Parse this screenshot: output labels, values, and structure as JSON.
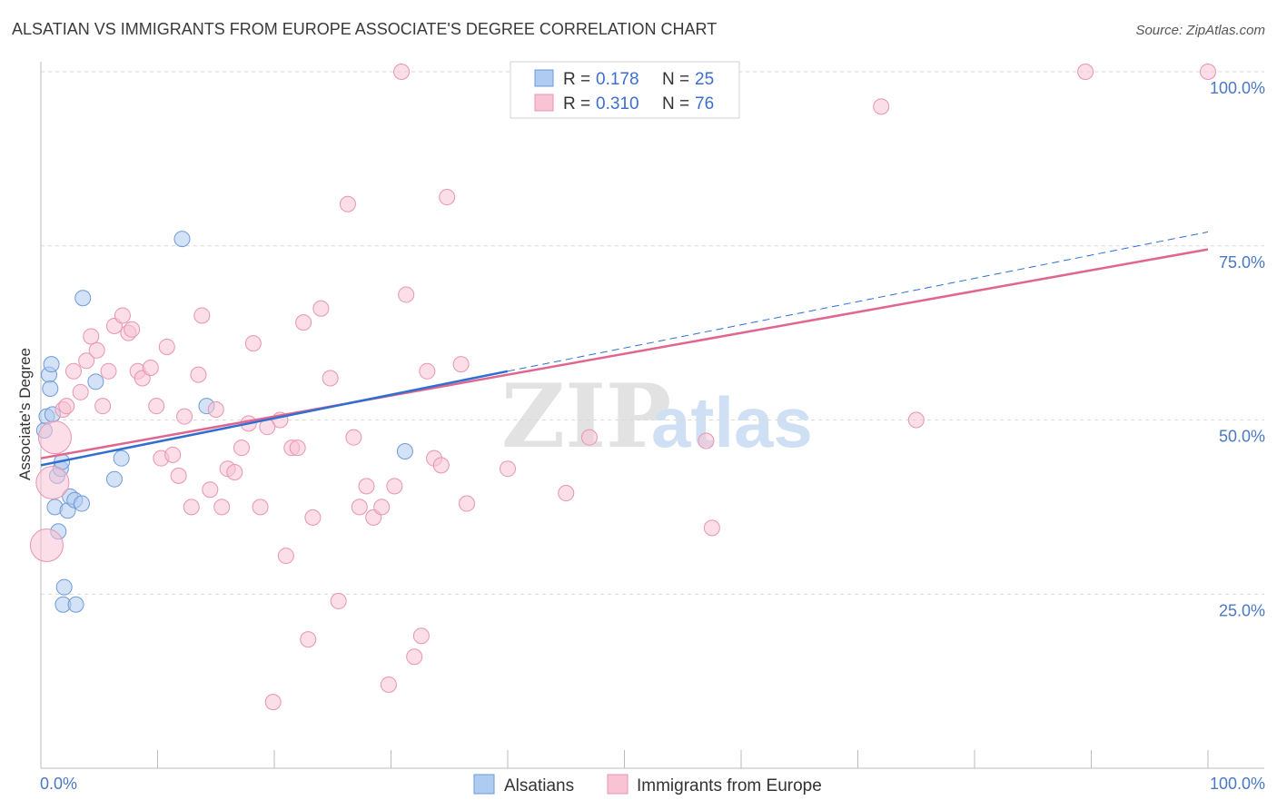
{
  "chart_data": {
    "type": "scatter",
    "title": "ALSATIAN VS IMMIGRANTS FROM EUROPE ASSOCIATE'S DEGREE CORRELATION CHART",
    "source": "Source: ZipAtlas.com",
    "ylabel": "Associate's Degree",
    "xlabel": "",
    "xlim": [
      0,
      100
    ],
    "ylim": [
      0,
      100
    ],
    "x_tick_labels": [
      "0.0%",
      "100.0%"
    ],
    "y_ticks": [
      25,
      50,
      75,
      100
    ],
    "y_tick_labels": [
      "25.0%",
      "50.0%",
      "75.0%",
      "100.0%"
    ],
    "watermark": {
      "zip": "ZIP",
      "atlas": "atlas"
    },
    "legend": {
      "position": "top-center",
      "rows": [
        {
          "r_label": "R =",
          "r_value": "0.178",
          "n_label": "N =",
          "n_value": "25"
        },
        {
          "r_label": "R =",
          "r_value": "0.310",
          "n_label": "N =",
          "n_value": "76"
        }
      ]
    },
    "colors": {
      "alsatians_fill": "#aecbf0",
      "alsatians_stroke": "#6f9ad8",
      "alsatians_line": "#2e6fd1",
      "immigrants_fill": "#f8c3d3",
      "immigrants_stroke": "#e994b0",
      "immigrants_line": "#e0658f",
      "grid": "#d9d9d9",
      "axis": "#bbbbbb"
    },
    "series": [
      {
        "name": "Alsatians",
        "trend": {
          "x0": 0,
          "y0": 43.5,
          "x1": 40,
          "y1": 57,
          "dashed_to_x": 100,
          "dashed_to_y": 77
        },
        "points": [
          [
            0.3,
            48.5
          ],
          [
            0.5,
            50.5
          ],
          [
            0.7,
            56.5
          ],
          [
            0.8,
            54.5
          ],
          [
            0.9,
            58.0
          ],
          [
            1.0,
            50.8
          ],
          [
            1.2,
            37.5
          ],
          [
            1.4,
            42.0
          ],
          [
            1.5,
            34.0
          ],
          [
            1.7,
            43.0
          ],
          [
            1.8,
            44.0
          ],
          [
            1.9,
            23.5
          ],
          [
            2.0,
            26.0
          ],
          [
            2.3,
            37.0
          ],
          [
            2.5,
            39.0
          ],
          [
            2.9,
            38.5
          ],
          [
            3.0,
            23.5
          ],
          [
            3.5,
            38.0
          ],
          [
            3.6,
            67.5
          ],
          [
            4.7,
            55.5
          ],
          [
            6.3,
            41.5
          ],
          [
            6.9,
            44.5
          ],
          [
            12.1,
            76.0
          ],
          [
            14.2,
            52.0
          ],
          [
            31.2,
            45.5
          ]
        ]
      },
      {
        "name": "Immigrants from Europe",
        "trend": {
          "x0": 0,
          "y0": 44.5,
          "x1": 100,
          "y1": 74.5
        },
        "points": [
          [
            0.5,
            32.0
          ],
          [
            1.0,
            41.0
          ],
          [
            1.2,
            47.5
          ],
          [
            1.9,
            51.5
          ],
          [
            2.2,
            52.0
          ],
          [
            2.8,
            57.0
          ],
          [
            3.4,
            54.0
          ],
          [
            3.9,
            58.5
          ],
          [
            4.3,
            62.0
          ],
          [
            4.8,
            60.0
          ],
          [
            5.3,
            52.0
          ],
          [
            5.8,
            57.0
          ],
          [
            6.3,
            63.5
          ],
          [
            7.0,
            65.0
          ],
          [
            7.5,
            62.5
          ],
          [
            7.8,
            63.0
          ],
          [
            8.3,
            57.0
          ],
          [
            8.7,
            56.0
          ],
          [
            9.4,
            57.5
          ],
          [
            9.9,
            52.0
          ],
          [
            10.3,
            44.5
          ],
          [
            10.8,
            60.5
          ],
          [
            11.3,
            45.0
          ],
          [
            11.8,
            42.0
          ],
          [
            12.3,
            50.5
          ],
          [
            12.9,
            37.5
          ],
          [
            13.5,
            56.5
          ],
          [
            13.8,
            65.0
          ],
          [
            14.5,
            40.0
          ],
          [
            15.0,
            51.5
          ],
          [
            15.5,
            37.5
          ],
          [
            16.0,
            43.0
          ],
          [
            16.6,
            42.5
          ],
          [
            17.2,
            46.0
          ],
          [
            17.8,
            49.5
          ],
          [
            18.2,
            61.0
          ],
          [
            18.8,
            37.5
          ],
          [
            19.4,
            49.0
          ],
          [
            19.9,
            9.5
          ],
          [
            20.5,
            50.0
          ],
          [
            21.0,
            30.5
          ],
          [
            21.5,
            46.0
          ],
          [
            22.0,
            46.0
          ],
          [
            22.5,
            64.0
          ],
          [
            22.9,
            18.5
          ],
          [
            23.3,
            36.0
          ],
          [
            24.0,
            66.0
          ],
          [
            24.8,
            56.0
          ],
          [
            25.5,
            24.0
          ],
          [
            26.3,
            81.0
          ],
          [
            26.8,
            47.5
          ],
          [
            27.3,
            37.5
          ],
          [
            27.9,
            40.5
          ],
          [
            28.5,
            36.0
          ],
          [
            29.2,
            37.5
          ],
          [
            29.8,
            12.0
          ],
          [
            30.3,
            40.5
          ],
          [
            30.9,
            100.0
          ],
          [
            31.3,
            68.0
          ],
          [
            32.0,
            16.0
          ],
          [
            32.6,
            19.0
          ],
          [
            33.1,
            57.0
          ],
          [
            33.7,
            44.5
          ],
          [
            34.3,
            43.5
          ],
          [
            34.8,
            82.0
          ],
          [
            36.0,
            58.0
          ],
          [
            40.0,
            43.0
          ],
          [
            45.0,
            39.5
          ],
          [
            47.0,
            47.5
          ],
          [
            57.0,
            47.0
          ],
          [
            57.5,
            34.5
          ],
          [
            72.0,
            95.0
          ],
          [
            75.0,
            50.0
          ],
          [
            89.5,
            100.0
          ],
          [
            100.0,
            100.0
          ],
          [
            36.5,
            38.0
          ]
        ]
      }
    ]
  }
}
